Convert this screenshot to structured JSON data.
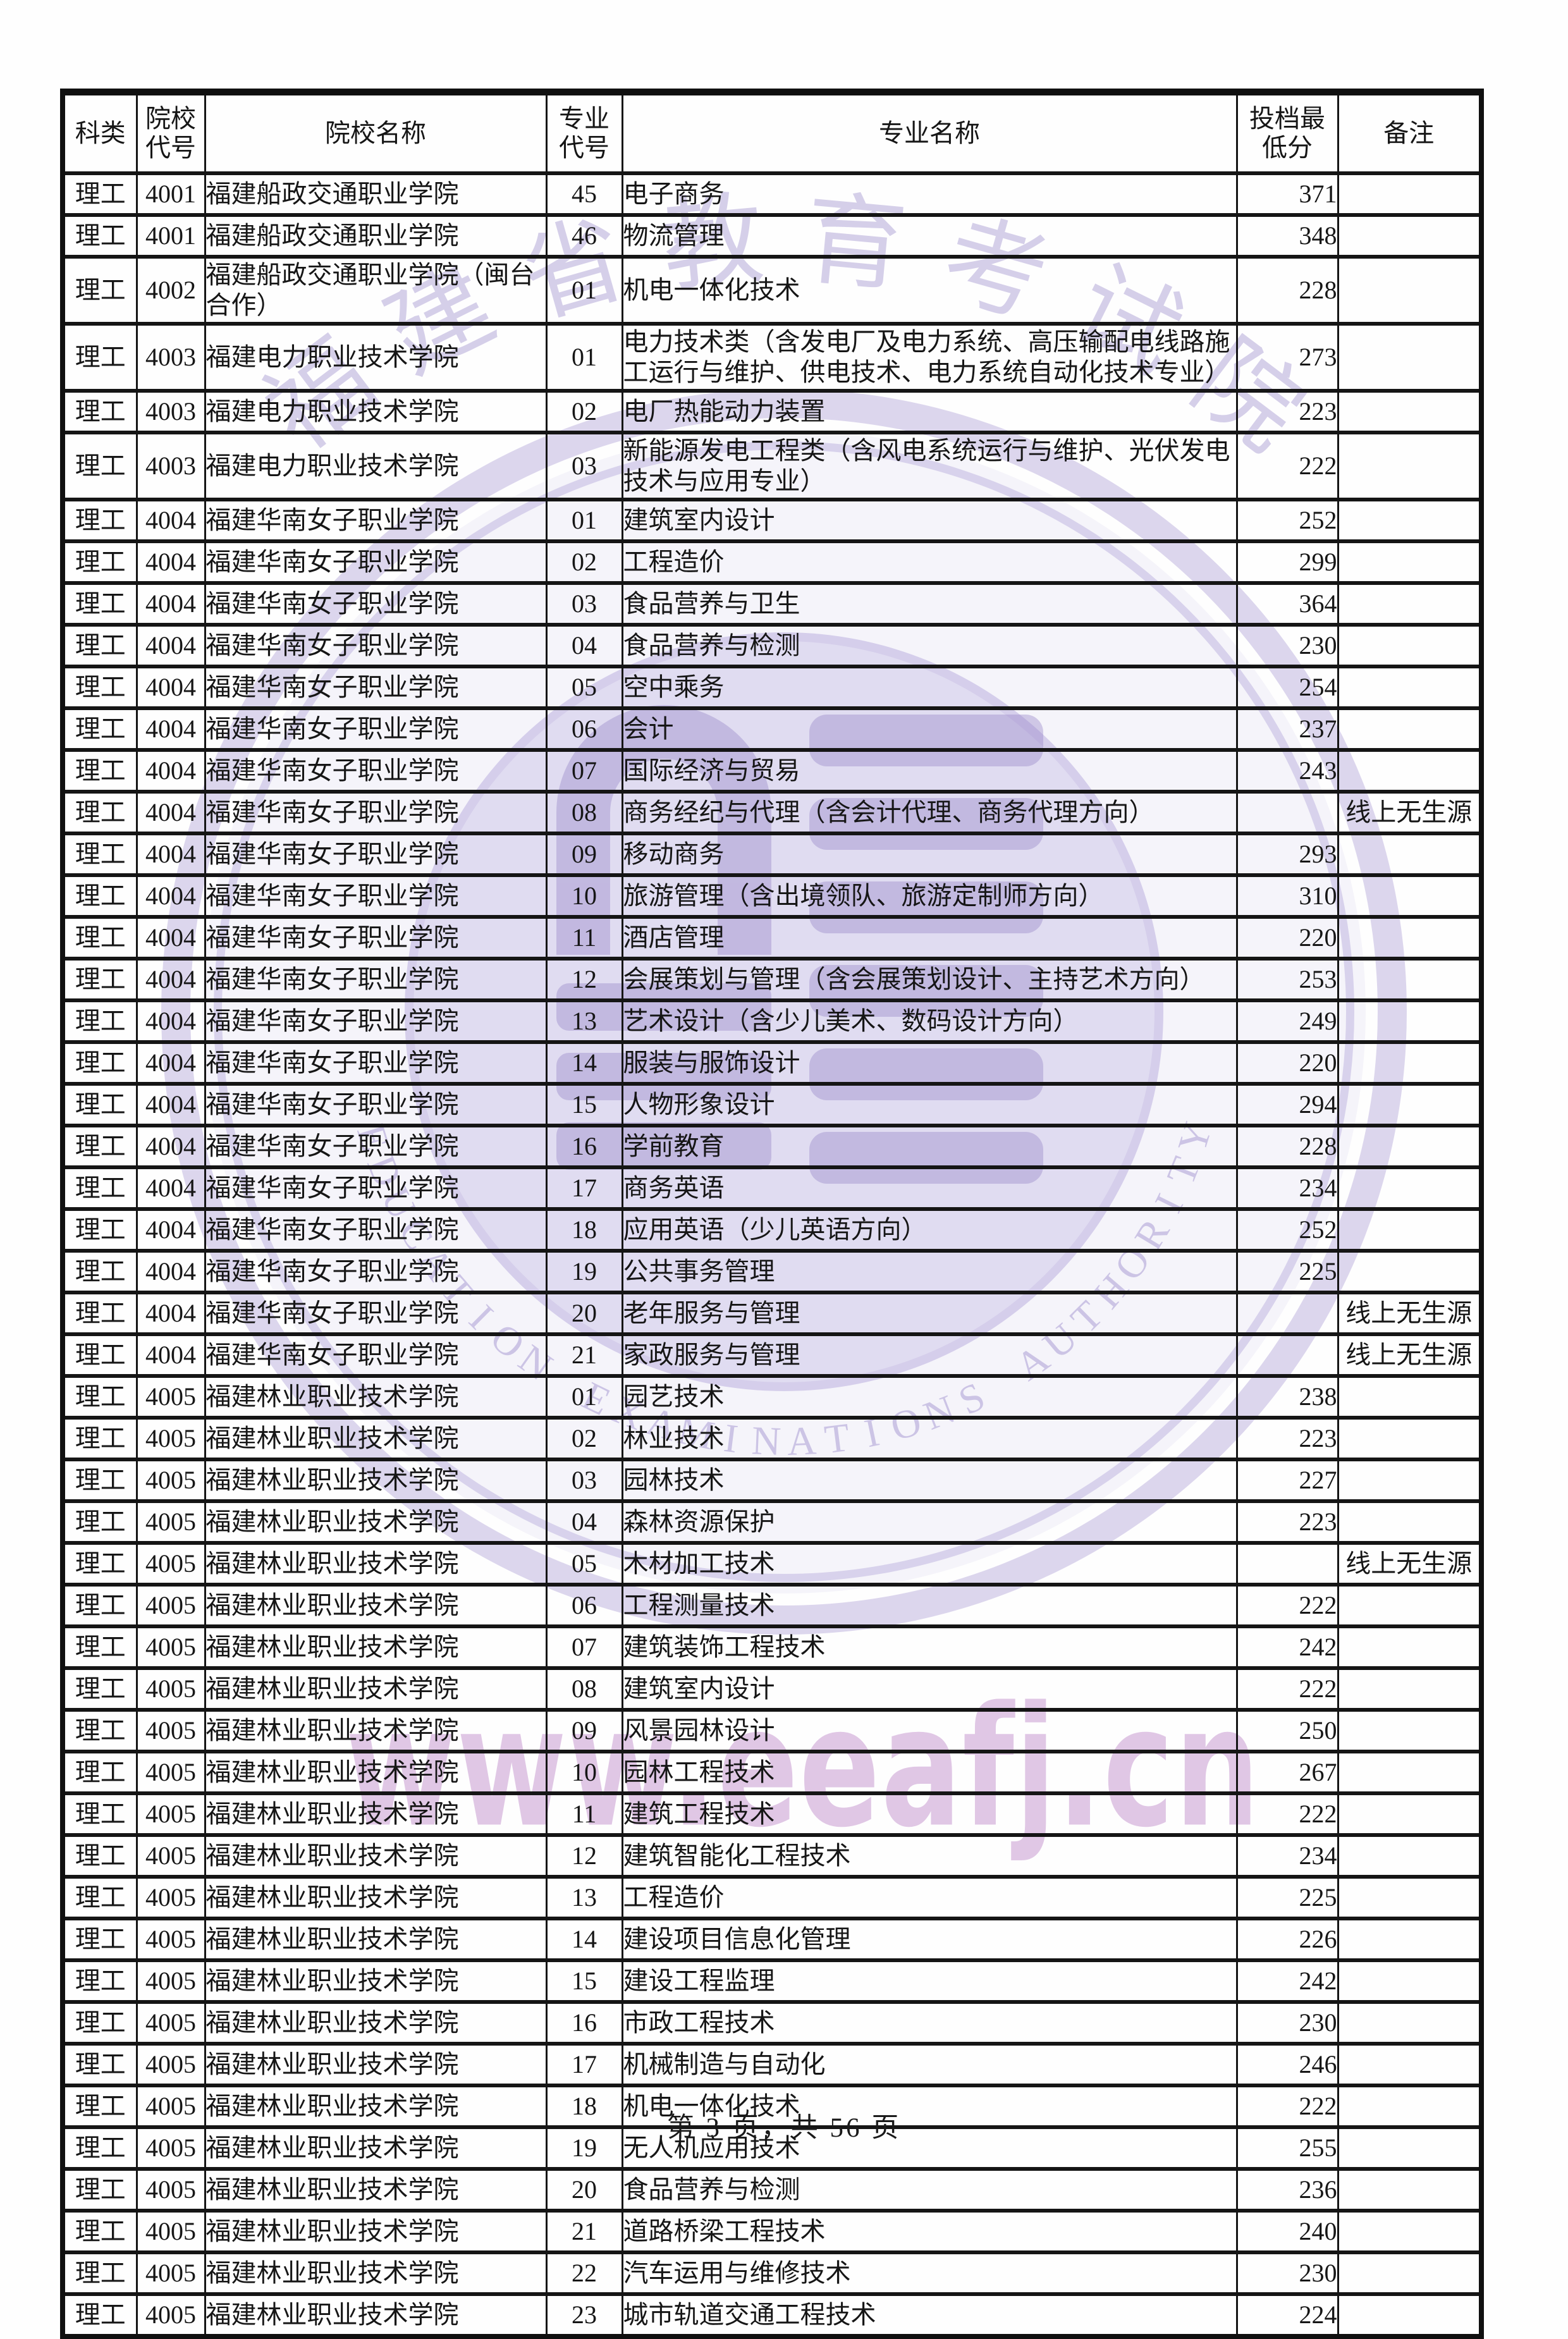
{
  "page": {
    "footer": "第 3 页，共 56 页"
  },
  "table": {
    "headers": [
      "科类",
      "院校\n代号",
      "院校名称",
      "专业\n代号",
      "专业名称",
      "投档最\n低分",
      "备注"
    ],
    "rows": [
      [
        "理工",
        "4001",
        "福建船政交通职业学院",
        "45",
        "电子商务",
        "371",
        ""
      ],
      [
        "理工",
        "4001",
        "福建船政交通职业学院",
        "46",
        "物流管理",
        "348",
        ""
      ],
      [
        "理工",
        "4002",
        "福建船政交通职业学院（闽台合作）",
        "01",
        "机电一体化技术",
        "228",
        ""
      ],
      [
        "理工",
        "4003",
        "福建电力职业技术学院",
        "01",
        "电力技术类（含发电厂及电力系统、高压输配电线路施工运行与维护、供电技术、电力系统自动化技术专业）",
        "273",
        ""
      ],
      [
        "理工",
        "4003",
        "福建电力职业技术学院",
        "02",
        "电厂热能动力装置",
        "223",
        ""
      ],
      [
        "理工",
        "4003",
        "福建电力职业技术学院",
        "03",
        "新能源发电工程类（含风电系统运行与维护、光伏发电技术与应用专业）",
        "222",
        ""
      ],
      [
        "理工",
        "4004",
        "福建华南女子职业学院",
        "01",
        "建筑室内设计",
        "252",
        ""
      ],
      [
        "理工",
        "4004",
        "福建华南女子职业学院",
        "02",
        "工程造价",
        "299",
        ""
      ],
      [
        "理工",
        "4004",
        "福建华南女子职业学院",
        "03",
        "食品营养与卫生",
        "364",
        ""
      ],
      [
        "理工",
        "4004",
        "福建华南女子职业学院",
        "04",
        "食品营养与检测",
        "230",
        ""
      ],
      [
        "理工",
        "4004",
        "福建华南女子职业学院",
        "05",
        "空中乘务",
        "254",
        ""
      ],
      [
        "理工",
        "4004",
        "福建华南女子职业学院",
        "06",
        "会计",
        "237",
        ""
      ],
      [
        "理工",
        "4004",
        "福建华南女子职业学院",
        "07",
        "国际经济与贸易",
        "243",
        ""
      ],
      [
        "理工",
        "4004",
        "福建华南女子职业学院",
        "08",
        "商务经纪与代理（含会计代理、商务代理方向）",
        "",
        "线上无生源"
      ],
      [
        "理工",
        "4004",
        "福建华南女子职业学院",
        "09",
        "移动商务",
        "293",
        ""
      ],
      [
        "理工",
        "4004",
        "福建华南女子职业学院",
        "10",
        "旅游管理（含出境领队、旅游定制师方向）",
        "310",
        ""
      ],
      [
        "理工",
        "4004",
        "福建华南女子职业学院",
        "11",
        "酒店管理",
        "220",
        ""
      ],
      [
        "理工",
        "4004",
        "福建华南女子职业学院",
        "12",
        "会展策划与管理（含会展策划设计、主持艺术方向）",
        "253",
        ""
      ],
      [
        "理工",
        "4004",
        "福建华南女子职业学院",
        "13",
        "艺术设计（含少儿美术、数码设计方向）",
        "249",
        ""
      ],
      [
        "理工",
        "4004",
        "福建华南女子职业学院",
        "14",
        "服装与服饰设计",
        "220",
        ""
      ],
      [
        "理工",
        "4004",
        "福建华南女子职业学院",
        "15",
        "人物形象设计",
        "294",
        ""
      ],
      [
        "理工",
        "4004",
        "福建华南女子职业学院",
        "16",
        "学前教育",
        "228",
        ""
      ],
      [
        "理工",
        "4004",
        "福建华南女子职业学院",
        "17",
        "商务英语",
        "234",
        ""
      ],
      [
        "理工",
        "4004",
        "福建华南女子职业学院",
        "18",
        "应用英语（少儿英语方向）",
        "252",
        ""
      ],
      [
        "理工",
        "4004",
        "福建华南女子职业学院",
        "19",
        "公共事务管理",
        "225",
        ""
      ],
      [
        "理工",
        "4004",
        "福建华南女子职业学院",
        "20",
        "老年服务与管理",
        "",
        "线上无生源"
      ],
      [
        "理工",
        "4004",
        "福建华南女子职业学院",
        "21",
        "家政服务与管理",
        "",
        "线上无生源"
      ],
      [
        "理工",
        "4005",
        "福建林业职业技术学院",
        "01",
        "园艺技术",
        "238",
        ""
      ],
      [
        "理工",
        "4005",
        "福建林业职业技术学院",
        "02",
        "林业技术",
        "223",
        ""
      ],
      [
        "理工",
        "4005",
        "福建林业职业技术学院",
        "03",
        "园林技术",
        "227",
        ""
      ],
      [
        "理工",
        "4005",
        "福建林业职业技术学院",
        "04",
        "森林资源保护",
        "223",
        ""
      ],
      [
        "理工",
        "4005",
        "福建林业职业技术学院",
        "05",
        "木材加工技术",
        "",
        "线上无生源"
      ],
      [
        "理工",
        "4005",
        "福建林业职业技术学院",
        "06",
        "工程测量技术",
        "222",
        ""
      ],
      [
        "理工",
        "4005",
        "福建林业职业技术学院",
        "07",
        "建筑装饰工程技术",
        "242",
        ""
      ],
      [
        "理工",
        "4005",
        "福建林业职业技术学院",
        "08",
        "建筑室内设计",
        "222",
        ""
      ],
      [
        "理工",
        "4005",
        "福建林业职业技术学院",
        "09",
        "风景园林设计",
        "250",
        ""
      ],
      [
        "理工",
        "4005",
        "福建林业职业技术学院",
        "10",
        "园林工程技术",
        "267",
        ""
      ],
      [
        "理工",
        "4005",
        "福建林业职业技术学院",
        "11",
        "建筑工程技术",
        "222",
        ""
      ],
      [
        "理工",
        "4005",
        "福建林业职业技术学院",
        "12",
        "建筑智能化工程技术",
        "234",
        ""
      ],
      [
        "理工",
        "4005",
        "福建林业职业技术学院",
        "13",
        "工程造价",
        "225",
        ""
      ],
      [
        "理工",
        "4005",
        "福建林业职业技术学院",
        "14",
        "建设项目信息化管理",
        "226",
        ""
      ],
      [
        "理工",
        "4005",
        "福建林业职业技术学院",
        "15",
        "建设工程监理",
        "242",
        ""
      ],
      [
        "理工",
        "4005",
        "福建林业职业技术学院",
        "16",
        "市政工程技术",
        "230",
        ""
      ],
      [
        "理工",
        "4005",
        "福建林业职业技术学院",
        "17",
        "机械制造与自动化",
        "246",
        ""
      ],
      [
        "理工",
        "4005",
        "福建林业职业技术学院",
        "18",
        "机电一体化技术",
        "222",
        ""
      ],
      [
        "理工",
        "4005",
        "福建林业职业技术学院",
        "19",
        "无人机应用技术",
        "255",
        ""
      ],
      [
        "理工",
        "4005",
        "福建林业职业技术学院",
        "20",
        "食品营养与检测",
        "236",
        ""
      ],
      [
        "理工",
        "4005",
        "福建林业职业技术学院",
        "21",
        "道路桥梁工程技术",
        "240",
        ""
      ],
      [
        "理工",
        "4005",
        "福建林业职业技术学院",
        "22",
        "汽车运用与维修技术",
        "230",
        ""
      ],
      [
        "理工",
        "4005",
        "福建林业职业技术学院",
        "23",
        "城市轨道交通工程技术",
        "224",
        ""
      ]
    ]
  },
  "watermark": {
    "seal_top_text": "福建省教育考试院",
    "seal_bottom_text": "EDUCATION EXAMINATIONS AUTHORITY",
    "url_text": "www.eeafj.cn",
    "colors": {
      "seal_ink": "#a99bd4",
      "url_ink": "#c99ed2",
      "disc": "#baaee0"
    }
  }
}
